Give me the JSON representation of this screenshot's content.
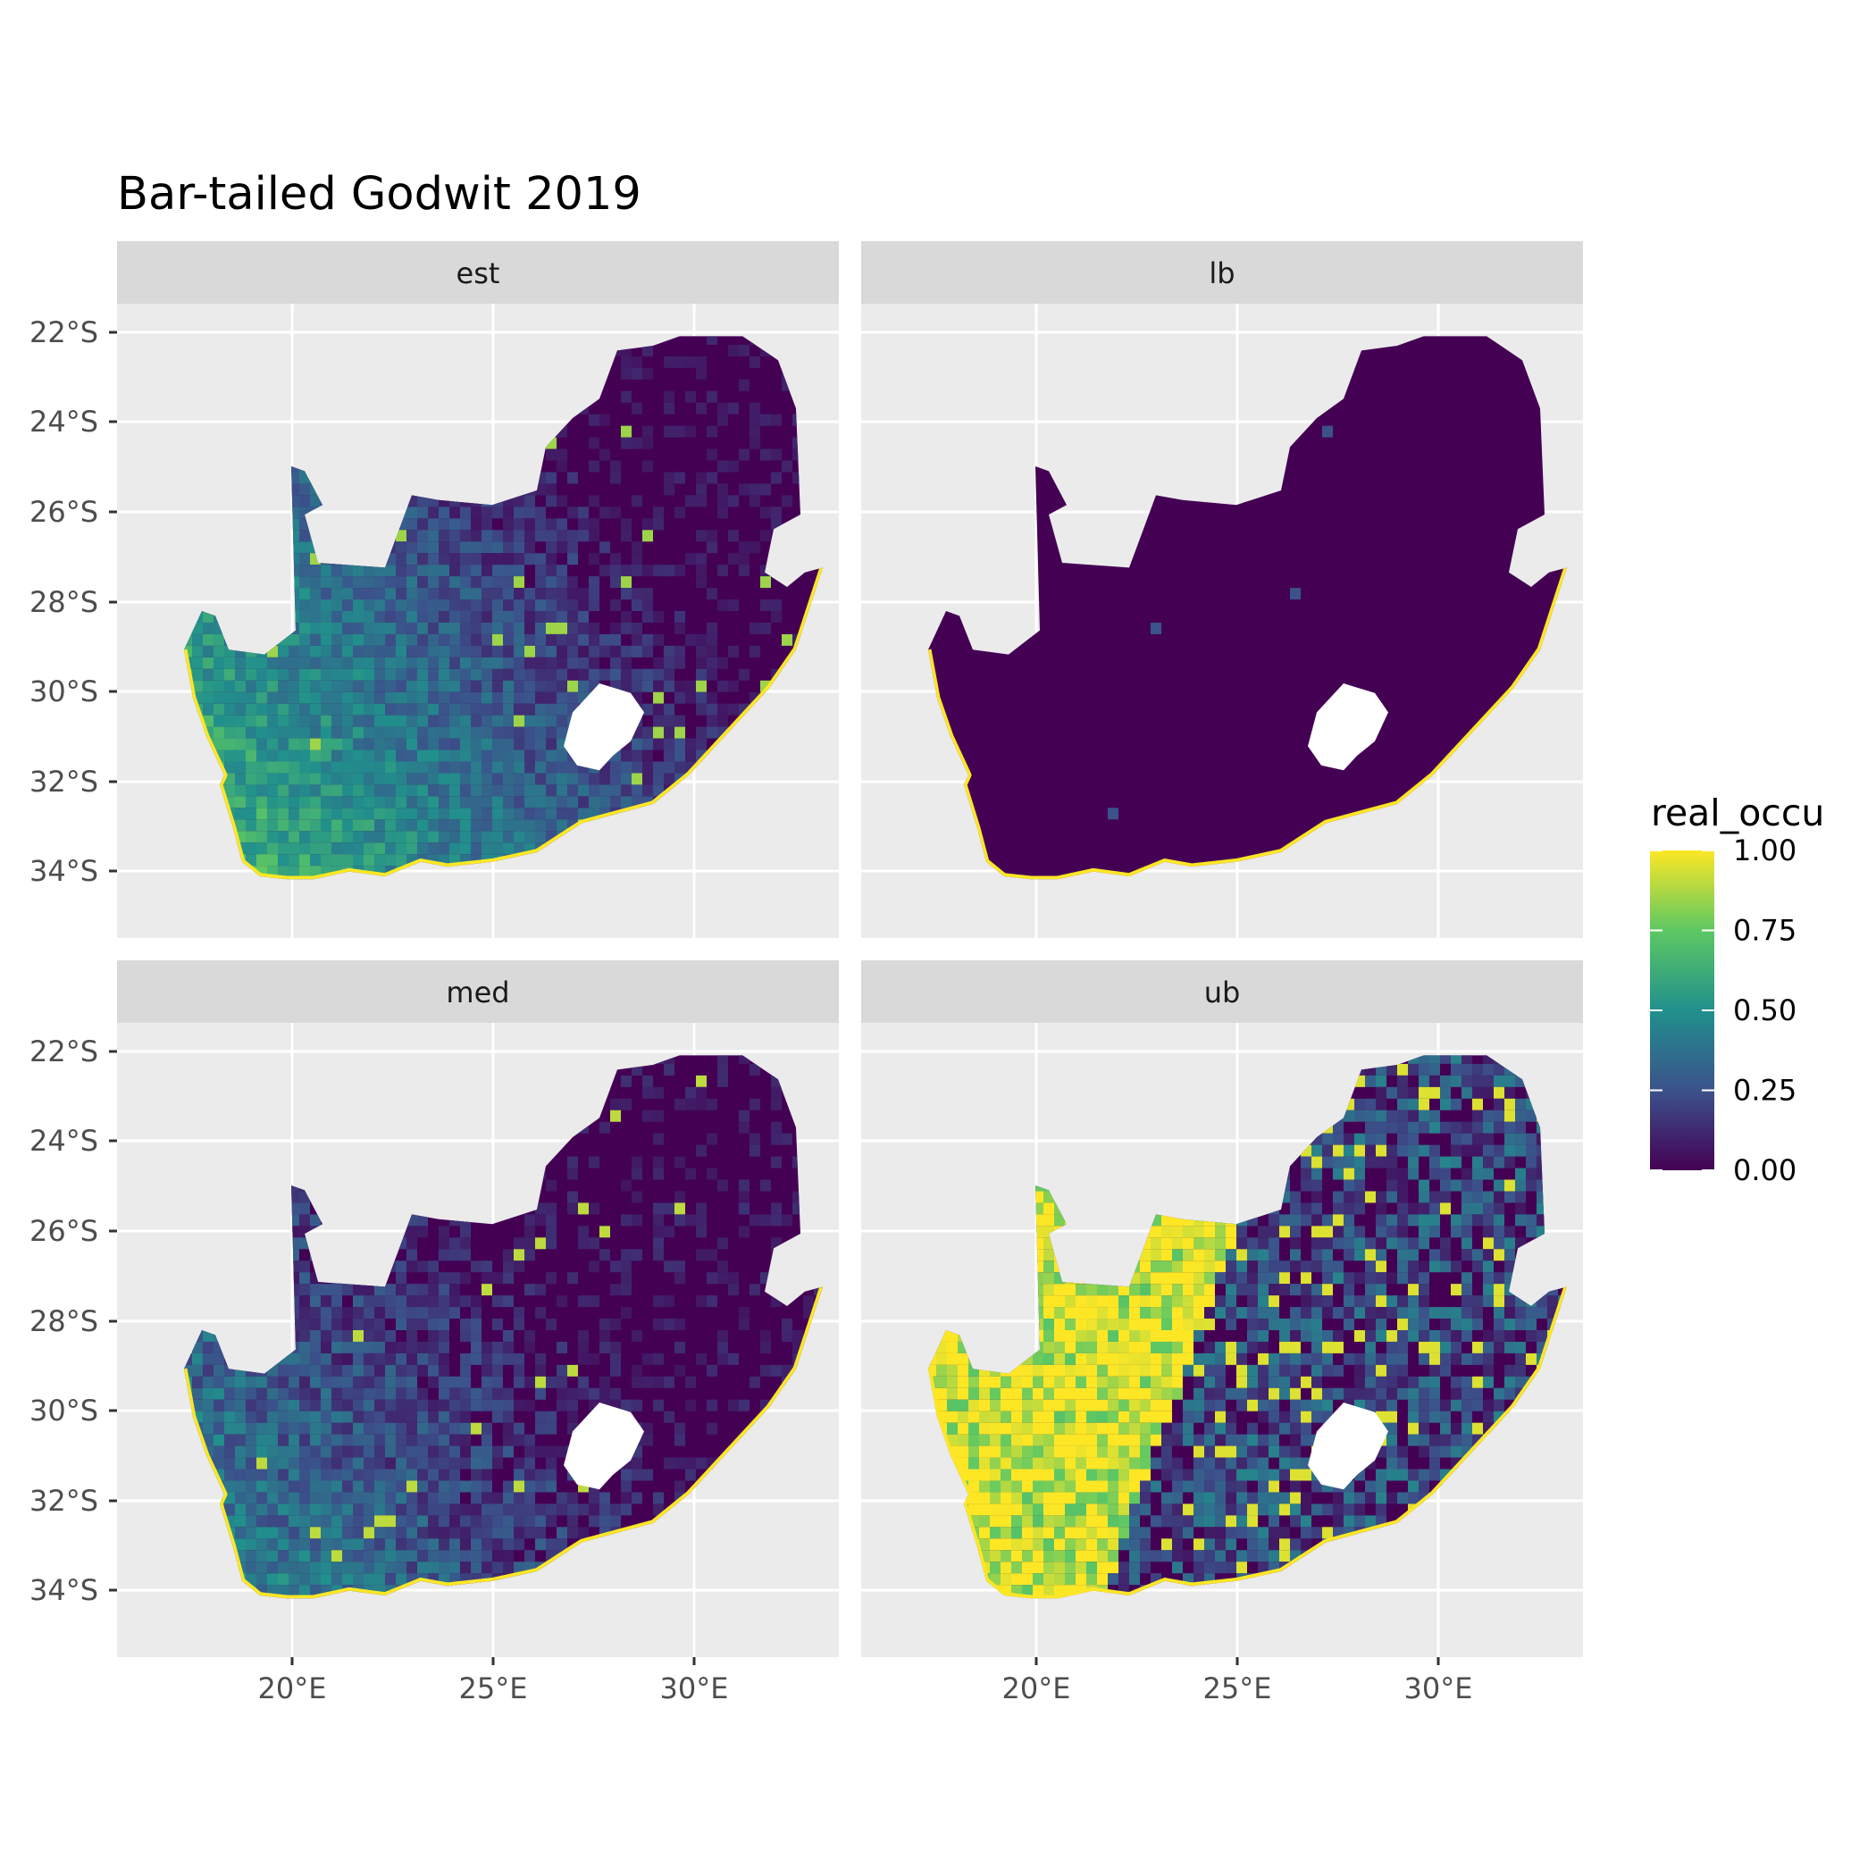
{
  "chart_data": {
    "type": "raster_map_facets",
    "title": "Bar-tailed Godwit 2019",
    "xlabel": "",
    "ylabel": "",
    "x_ticks": [
      "20°E",
      "25°E",
      "30°E"
    ],
    "y_ticks": [
      "22°S",
      "24°S",
      "26°S",
      "28°S",
      "30°S",
      "32°S",
      "34°S"
    ],
    "legend": {
      "title": "real_occu",
      "breaks": [
        "1.00",
        "0.75",
        "0.50",
        "0.25",
        "0.00"
      ],
      "range": [
        0,
        1
      ],
      "colors": [
        "#440154",
        "#3b528b",
        "#21908c",
        "#5dc863",
        "#fde725"
      ]
    },
    "panels": [
      {
        "label": "est",
        "summary": "mostly low occupancy (dark purple) in north-east; low-to-moderate values (blue/green) across western and southern interior; high values (yellow) along coastline"
      },
      {
        "label": "lb",
        "summary": "near-zero occupancy everywhere; yellow only along coastline edge"
      },
      {
        "label": "med",
        "summary": "mostly low occupancy; moderate speckles in west and south-west; high values along coastline"
      },
      {
        "label": "ub",
        "summary": "high occupancy (yellow) across western and central regions; mixed low-moderate values in north-east and east"
      }
    ],
    "colors": {
      "panel_bg": "#ebebeb",
      "strip_bg": "#d9d9d9",
      "grid": "#ffffff",
      "low": "#440154",
      "high": "#fde725"
    }
  }
}
